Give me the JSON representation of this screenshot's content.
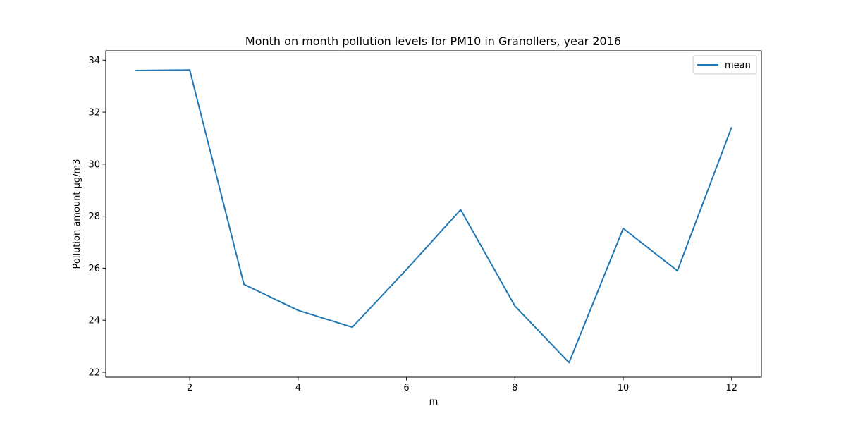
{
  "chart_data": {
    "type": "line",
    "title": "Month on month pollution levels for PM10 in Granollers, year 2016",
    "xlabel": "m",
    "ylabel": "Pollution amount µg/m3",
    "x": [
      1,
      2,
      3,
      4,
      5,
      6,
      7,
      8,
      9,
      10,
      11,
      12
    ],
    "series": [
      {
        "name": "mean",
        "color": "#1f77b4",
        "values": [
          33.6,
          33.62,
          25.38,
          24.38,
          23.73,
          25.95,
          28.25,
          24.55,
          22.37,
          27.53,
          25.9,
          31.42
        ]
      }
    ],
    "xlim": [
      0.45,
      12.55
    ],
    "ylim": [
      21.81,
      34.36
    ],
    "xticks": [
      2,
      4,
      6,
      8,
      10,
      12
    ],
    "xtick_labels": [
      "2",
      "4",
      "6",
      "8",
      "10",
      "12"
    ],
    "yticks": [
      22,
      24,
      26,
      28,
      30,
      32,
      34
    ],
    "ytick_labels": [
      "22",
      "24",
      "26",
      "28",
      "30",
      "32",
      "34"
    ],
    "grid": false,
    "legend_position": "top-right"
  }
}
